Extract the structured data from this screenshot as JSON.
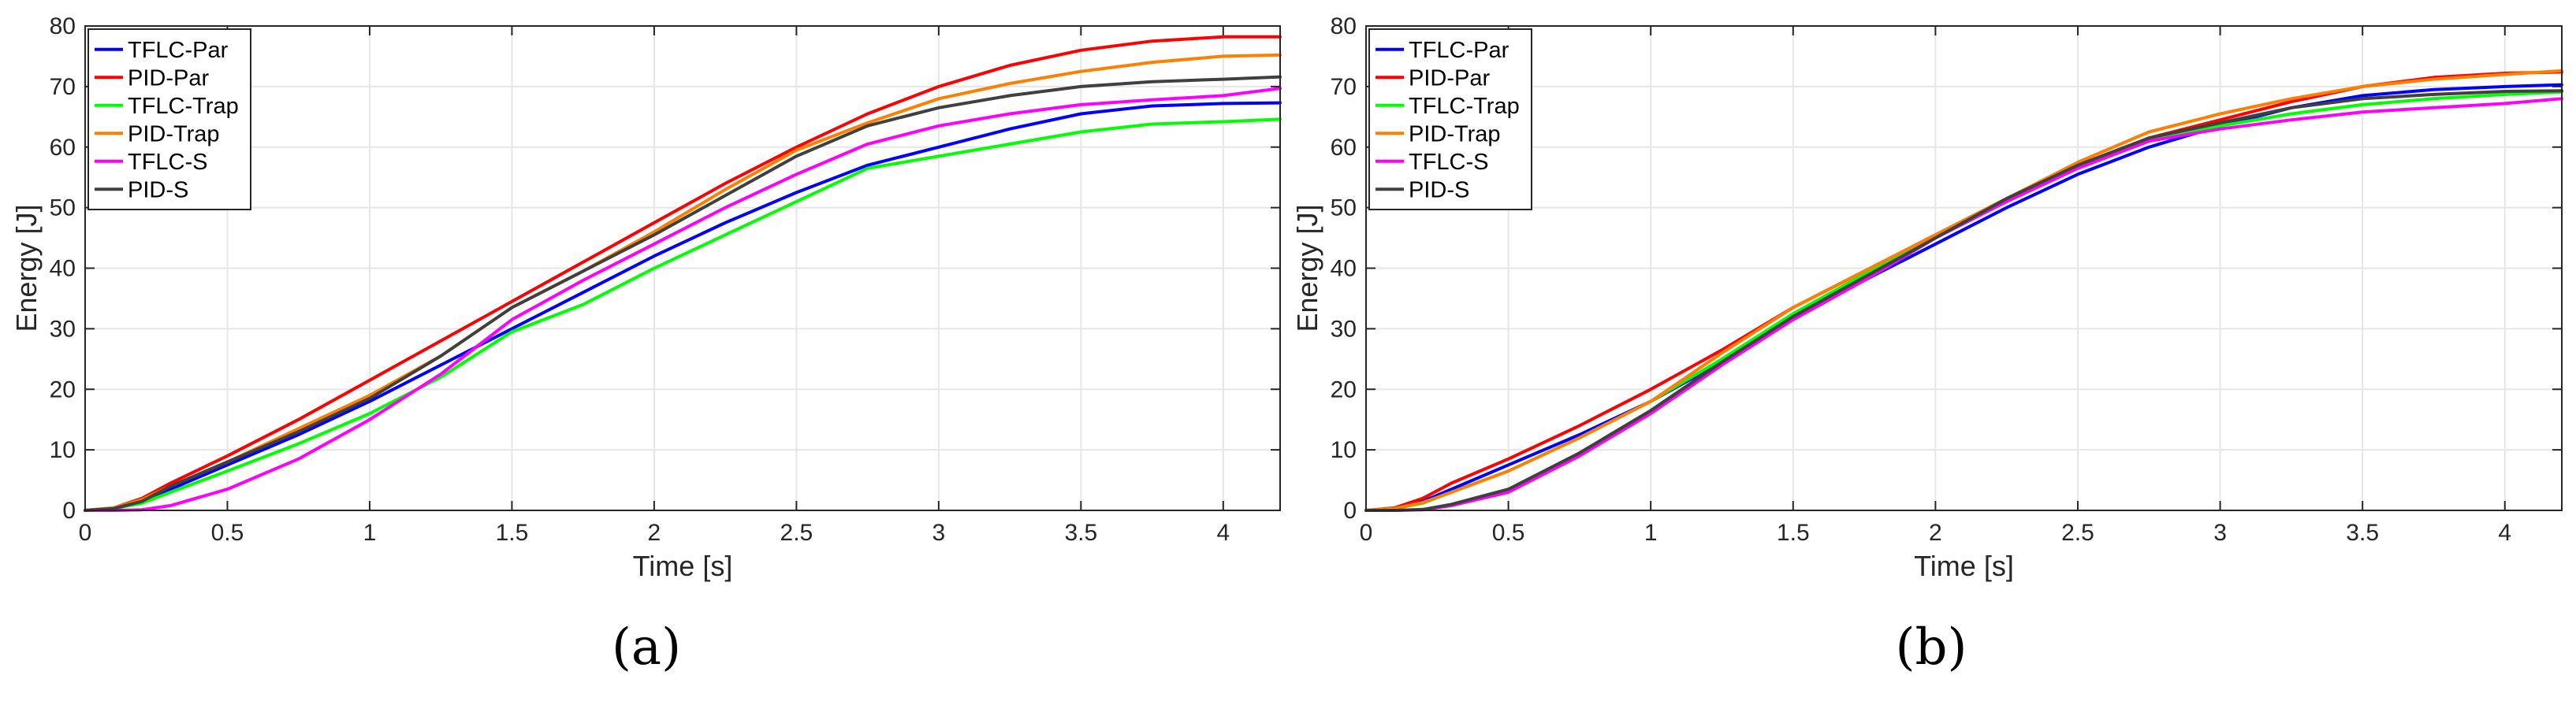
{
  "chart_data": [
    {
      "type": "line",
      "panel_label": "(a)",
      "xlabel": "Time [s]",
      "ylabel": "Energy [J]",
      "xlim": [
        0,
        4.2
      ],
      "ylim": [
        0,
        80
      ],
      "xticks": [
        0,
        0.5,
        1,
        1.5,
        2,
        2.5,
        3,
        3.5,
        4
      ],
      "xtick_labels": [
        "0",
        "0.5",
        "1",
        "1.5",
        "2",
        "2.5",
        "3",
        "3.5",
        "4"
      ],
      "yticks": [
        0,
        10,
        20,
        30,
        40,
        50,
        60,
        70,
        80
      ],
      "ytick_labels": [
        "0",
        "10",
        "20",
        "30",
        "40",
        "50",
        "60",
        "70",
        "80"
      ],
      "grid": true,
      "legend_position": "top-left",
      "series": [
        {
          "name": "TFLC-Par",
          "color": "#0000ff",
          "x": [
            0,
            0.1,
            0.2,
            0.3,
            0.5,
            0.75,
            1,
            1.25,
            1.5,
            1.75,
            2,
            2.25,
            2.5,
            2.75,
            3,
            3.25,
            3.5,
            3.75,
            4,
            4.2
          ],
          "y": [
            0,
            0.3,
            1.5,
            3.5,
            7.5,
            12.5,
            18,
            24,
            30,
            36,
            42,
            47.5,
            52.5,
            57,
            60,
            63,
            65.5,
            66.8,
            67.2,
            67.3
          ]
        },
        {
          "name": "PID-Par",
          "color": "#ff0000",
          "x": [
            0,
            0.1,
            0.2,
            0.3,
            0.5,
            0.75,
            1,
            1.25,
            1.5,
            1.75,
            2,
            2.25,
            2.5,
            2.75,
            3,
            3.25,
            3.5,
            3.75,
            4,
            4.2
          ],
          "y": [
            0,
            0.4,
            2,
            4.5,
            9,
            15,
            21.5,
            28,
            34.5,
            41,
            47.5,
            54,
            60,
            65.5,
            70,
            73.5,
            76,
            77.5,
            78.2,
            78.2
          ]
        },
        {
          "name": "TFLC-Trap",
          "color": "#00ff00",
          "x": [
            0,
            0.1,
            0.2,
            0.3,
            0.5,
            0.75,
            1,
            1.25,
            1.5,
            1.75,
            2,
            2.25,
            2.5,
            2.75,
            3,
            3.25,
            3.5,
            3.75,
            4,
            4.2
          ],
          "y": [
            0,
            0.3,
            1.2,
            3,
            6.5,
            11,
            16,
            22,
            29.5,
            34,
            40,
            45.5,
            51,
            56.5,
            58.5,
            60.5,
            62.5,
            63.8,
            64.2,
            64.6
          ]
        },
        {
          "name": "PID-Trap",
          "color": "#ff8000",
          "x": [
            0,
            0.1,
            0.2,
            0.3,
            0.5,
            0.75,
            1,
            1.25,
            1.5,
            1.75,
            2,
            2.25,
            2.5,
            2.75,
            3,
            3.25,
            3.5,
            3.75,
            4,
            4.2
          ],
          "y": [
            0,
            0.4,
            1.8,
            4,
            8,
            13.5,
            19,
            25.5,
            33.5,
            39.5,
            46,
            53,
            59.5,
            64,
            68,
            70.5,
            72.5,
            74,
            75,
            75.2
          ]
        },
        {
          "name": "TFLC-S",
          "color": "#ff00ff",
          "x": [
            0,
            0.1,
            0.2,
            0.3,
            0.5,
            0.75,
            1,
            1.25,
            1.5,
            1.75,
            2,
            2.25,
            2.5,
            2.75,
            3,
            3.25,
            3.5,
            3.75,
            4,
            4.2
          ],
          "y": [
            0,
            0,
            0.1,
            0.8,
            3.5,
            8.5,
            15,
            22.5,
            31.5,
            38,
            44,
            50,
            55.5,
            60.5,
            63.5,
            65.5,
            67,
            67.8,
            68.5,
            69.7
          ]
        },
        {
          "name": "PID-S",
          "color": "#404040",
          "x": [
            0,
            0.1,
            0.2,
            0.3,
            0.5,
            0.75,
            1,
            1.25,
            1.5,
            1.75,
            2,
            2.25,
            2.5,
            2.75,
            3,
            3.25,
            3.5,
            3.75,
            4,
            4.2
          ],
          "y": [
            0,
            0.3,
            1.5,
            4,
            8,
            13,
            18.5,
            25.5,
            33.5,
            39.5,
            45.5,
            52,
            58.5,
            63.5,
            66.5,
            68.5,
            70,
            70.8,
            71.2,
            71.6
          ]
        }
      ]
    },
    {
      "type": "line",
      "panel_label": "(b)",
      "xlabel": "Time [s]",
      "ylabel": "Energy [J]",
      "xlim": [
        0,
        4.2
      ],
      "ylim": [
        0,
        80
      ],
      "xticks": [
        0,
        0.5,
        1,
        1.5,
        2,
        2.5,
        3,
        3.5,
        4
      ],
      "xtick_labels": [
        "0",
        "0.5",
        "1",
        "1.5",
        "2",
        "2.5",
        "3",
        "3.5",
        "4"
      ],
      "yticks": [
        0,
        10,
        20,
        30,
        40,
        50,
        60,
        70,
        80
      ],
      "ytick_labels": [
        "0",
        "10",
        "20",
        "30",
        "40",
        "50",
        "60",
        "70",
        "80"
      ],
      "grid": true,
      "legend_position": "top-left",
      "series": [
        {
          "name": "TFLC-Par",
          "color": "#0000ff",
          "x": [
            0,
            0.1,
            0.2,
            0.3,
            0.5,
            0.75,
            1,
            1.25,
            1.5,
            1.75,
            2,
            2.25,
            2.5,
            2.75,
            3,
            3.25,
            3.5,
            3.75,
            4,
            4.2
          ],
          "y": [
            0,
            0.3,
            1.5,
            3.5,
            7.5,
            12.5,
            18,
            24.5,
            31.5,
            38,
            44,
            50,
            55.5,
            60,
            63.5,
            66.5,
            68.5,
            69.5,
            70,
            70.3
          ]
        },
        {
          "name": "PID-Par",
          "color": "#ff0000",
          "x": [
            0,
            0.1,
            0.2,
            0.3,
            0.5,
            0.75,
            1,
            1.25,
            1.5,
            1.75,
            2,
            2.25,
            2.5,
            2.75,
            3,
            3.25,
            3.5,
            3.75,
            4,
            4.2
          ],
          "y": [
            0,
            0.4,
            2,
            4.5,
            8.5,
            14,
            20,
            26.5,
            33.5,
            39.5,
            45.5,
            51.5,
            57,
            61.5,
            64.5,
            67.5,
            70,
            71.5,
            72.2,
            72.4
          ]
        },
        {
          "name": "TFLC-Trap",
          "color": "#00ff00",
          "x": [
            0,
            0.1,
            0.2,
            0.3,
            0.5,
            0.75,
            1,
            1.25,
            1.5,
            1.75,
            2,
            2.25,
            2.5,
            2.75,
            3,
            3.25,
            3.5,
            3.75,
            4,
            4.2
          ],
          "y": [
            0,
            0.3,
            1.2,
            3,
            6.5,
            12,
            18,
            25,
            32.5,
            39,
            45,
            51,
            56.5,
            61,
            63.5,
            65.5,
            67,
            68,
            68.7,
            69.1
          ]
        },
        {
          "name": "PID-Trap",
          "color": "#ff8000",
          "x": [
            0,
            0.1,
            0.2,
            0.3,
            0.5,
            0.75,
            1,
            1.25,
            1.5,
            1.75,
            2,
            2.25,
            2.5,
            2.75,
            3,
            3.25,
            3.5,
            3.75,
            4,
            4.2
          ],
          "y": [
            0,
            0.3,
            1.3,
            3,
            6.5,
            12,
            18,
            26,
            33.5,
            39.5,
            45.5,
            51.5,
            57.5,
            62.5,
            65.5,
            68,
            70,
            71.2,
            72,
            72.6
          ]
        },
        {
          "name": "TFLC-S",
          "color": "#ff00ff",
          "x": [
            0,
            0.1,
            0.2,
            0.3,
            0.5,
            0.75,
            1,
            1.25,
            1.5,
            1.75,
            2,
            2.25,
            2.5,
            2.75,
            3,
            3.25,
            3.5,
            3.75,
            4,
            4.2
          ],
          "y": [
            0,
            0,
            0.1,
            0.8,
            3,
            9,
            16,
            24,
            31.5,
            38,
            45,
            51,
            56.5,
            61,
            63,
            64.5,
            65.8,
            66.5,
            67.2,
            68
          ]
        },
        {
          "name": "PID-S",
          "color": "#404040",
          "x": [
            0,
            0.1,
            0.2,
            0.3,
            0.5,
            0.75,
            1,
            1.25,
            1.5,
            1.75,
            2,
            2.25,
            2.5,
            2.75,
            3,
            3.25,
            3.5,
            3.75,
            4,
            4.2
          ],
          "y": [
            0,
            0,
            0.15,
            1,
            3.5,
            9.5,
            16.5,
            24.5,
            32,
            38.5,
            45,
            51.5,
            57,
            61.5,
            64,
            66.5,
            68,
            68.7,
            69.2,
            69.3
          ]
        }
      ]
    }
  ]
}
